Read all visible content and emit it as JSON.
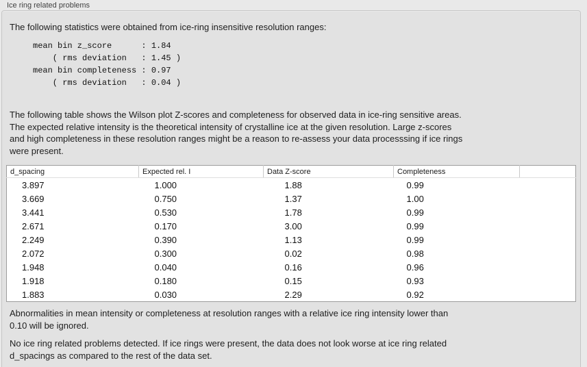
{
  "colors": {
    "window_background": "#e9e9e9",
    "panel_background": "#e2e2e2",
    "panel_border": "#c5c5c5",
    "table_background": "#ffffff",
    "table_border": "#9c9c9c",
    "text": "#1d1d1d",
    "title_text": "#3f3f3f"
  },
  "panel": {
    "title": "Ice ring related problems"
  },
  "intro": {
    "text": "The following statistics were obtained from ice-ring insensitive resolution ranges:"
  },
  "stats": {
    "lines": [
      "mean bin z_score      : 1.84",
      "    ( rms deviation   : 1.45 )",
      "mean bin completeness : 0.97",
      "    ( rms deviation   : 0.04 )"
    ],
    "mean_bin_z_score": "1.84",
    "z_score_rms_deviation": "1.45",
    "mean_bin_completeness": "0.97",
    "completeness_rms_deviation": "0.04"
  },
  "description": {
    "lines": [
      "The following table shows the Wilson plot Z-scores and completeness for observed data in ice-ring sensitive areas.",
      "The expected relative intensity is the theoretical intensity of crystalline ice at the given resolution. Large z-scores",
      "and high completeness in these resolution ranges might be a reason to re-assess your data processsing if ice rings",
      "were present."
    ]
  },
  "table": {
    "columns": [
      "d_spacing",
      "Expected rel. I",
      "Data Z-score",
      "Completeness",
      ""
    ],
    "rows": [
      [
        "3.897",
        "1.000",
        "1.88",
        "0.99"
      ],
      [
        "3.669",
        "0.750",
        "1.37",
        "1.00"
      ],
      [
        "3.441",
        "0.530",
        "1.78",
        "0.99"
      ],
      [
        "2.671",
        "0.170",
        "3.00",
        "0.99"
      ],
      [
        "2.249",
        "0.390",
        "1.13",
        "0.99"
      ],
      [
        "2.072",
        "0.300",
        "0.02",
        "0.98"
      ],
      [
        "1.948",
        "0.040",
        "0.16",
        "0.96"
      ],
      [
        "1.918",
        "0.180",
        "0.15",
        "0.93"
      ],
      [
        "1.883",
        "0.030",
        "2.29",
        "0.92"
      ]
    ]
  },
  "threshold_note": {
    "lines": [
      "Abnormalities in mean intensity or completeness at resolution ranges with a relative ice ring intensity lower than",
      "0.10 will be ignored."
    ]
  },
  "conclusion": {
    "lines": [
      "No ice ring related problems detected. If ice rings were present, the data does not look worse at ice ring related",
      "d_spacings as compared to the rest of the data set."
    ]
  }
}
